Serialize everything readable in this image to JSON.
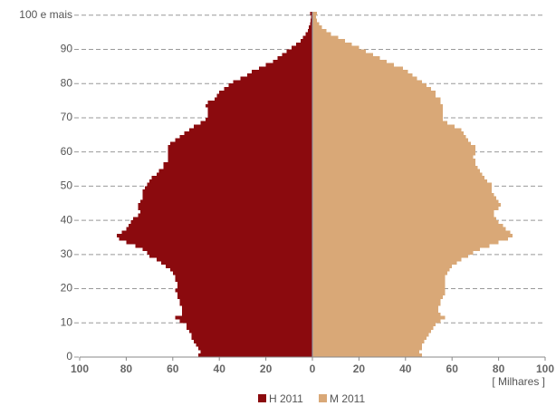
{
  "chart_data": {
    "type": "pyramid",
    "y": [
      0,
      1,
      2,
      3,
      4,
      5,
      6,
      7,
      8,
      9,
      10,
      11,
      12,
      13,
      14,
      15,
      16,
      17,
      18,
      19,
      20,
      21,
      22,
      23,
      24,
      25,
      26,
      27,
      28,
      29,
      30,
      31,
      32,
      33,
      34,
      35,
      36,
      37,
      38,
      39,
      40,
      41,
      42,
      43,
      44,
      45,
      46,
      47,
      48,
      49,
      50,
      51,
      52,
      53,
      54,
      55,
      56,
      57,
      58,
      59,
      60,
      61,
      62,
      63,
      64,
      65,
      66,
      67,
      68,
      69,
      70,
      71,
      72,
      73,
      74,
      75,
      76,
      77,
      78,
      79,
      80,
      81,
      82,
      83,
      84,
      85,
      86,
      87,
      88,
      89,
      90,
      91,
      92,
      93,
      94,
      95,
      96,
      97,
      98,
      99,
      100
    ],
    "series": [
      {
        "name": "H 2011",
        "color": "#8b0a0e",
        "side": "left",
        "values": [
          49,
          48,
          49,
          50,
          51,
          52,
          52,
          53,
          54,
          54,
          57,
          59,
          56,
          56,
          56,
          57,
          57,
          58,
          58,
          59,
          58,
          58,
          59,
          59,
          60,
          61,
          63,
          65,
          67,
          70,
          71,
          73,
          76,
          80,
          83,
          84,
          82,
          80,
          79,
          78,
          77,
          75,
          74,
          75,
          75,
          74,
          73,
          73,
          73,
          72,
          71,
          70,
          69,
          67,
          66,
          64,
          64,
          62,
          62,
          62,
          62,
          62,
          61,
          59,
          57,
          55,
          53,
          51,
          48,
          46,
          45,
          45,
          45,
          46,
          45,
          42,
          41,
          40,
          38,
          36,
          34,
          31,
          28,
          26,
          23,
          20,
          17,
          15,
          13,
          11,
          9,
          7,
          5,
          4,
          3,
          2,
          1.5,
          1,
          0.7,
          0.5,
          1
        ]
      },
      {
        "name": "M 2011",
        "color": "#d9a877",
        "side": "right",
        "values": [
          47,
          46,
          47,
          47,
          48,
          49,
          50,
          51,
          52,
          53,
          55,
          57,
          55,
          54,
          54,
          55,
          55,
          56,
          57,
          57,
          57,
          57,
          57,
          57,
          58,
          59,
          60,
          62,
          64,
          67,
          69,
          72,
          76,
          80,
          84,
          86,
          85,
          83,
          82,
          80,
          79,
          78,
          78,
          80,
          81,
          80,
          79,
          78,
          77,
          77,
          77,
          75,
          74,
          73,
          72,
          71,
          70,
          70,
          69,
          70,
          70,
          70,
          68,
          67,
          66,
          65,
          64,
          61,
          58,
          56,
          56,
          56,
          56,
          56,
          55,
          55,
          53,
          53,
          51,
          49,
          47,
          45,
          43,
          41,
          39,
          35,
          32,
          29,
          26,
          23,
          20,
          17,
          14,
          11,
          8,
          6,
          4,
          3,
          2,
          1.5,
          2
        ]
      }
    ],
    "xlim": [
      -100,
      100
    ],
    "xticks": [
      {
        "value": -100,
        "label": "100"
      },
      {
        "value": -80,
        "label": "80"
      },
      {
        "value": -60,
        "label": "60"
      },
      {
        "value": -40,
        "label": "40"
      },
      {
        "value": -20,
        "label": "20"
      },
      0,
      20,
      40,
      60,
      80,
      100
    ],
    "xlabel": "[ Milhares ]",
    "ylim": [
      0,
      101
    ],
    "yticks": [
      0,
      10,
      20,
      30,
      40,
      50,
      60,
      70,
      80,
      90,
      {
        "value": 100,
        "label": "100 e mais"
      }
    ],
    "grid": true
  }
}
